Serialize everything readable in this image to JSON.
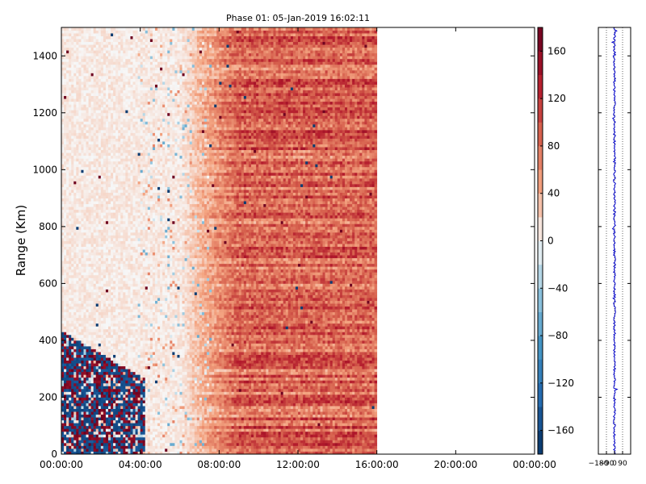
{
  "chart_data": [
    {
      "type": "heatmap",
      "title": "Phase 01: 05-Jan-2019 16:02:11",
      "xlabel": "",
      "ylabel": "Range (Km)",
      "x_ticks": [
        "00:00:00",
        "04:00:00",
        "08:00:00",
        "12:00:00",
        "16:00:00",
        "20:00:00",
        "00:00:00"
      ],
      "x_range_hours": [
        0,
        24
      ],
      "data_end_hour": 16,
      "y_ticks": [
        0,
        200,
        400,
        600,
        800,
        1000,
        1200,
        1400
      ],
      "ylim": [
        0,
        1500
      ],
      "colormap": "RdBu_r",
      "colorbar": {
        "ticks": [
          -160,
          -120,
          -80,
          -40,
          0,
          40,
          80,
          120,
          160
        ],
        "tick_labels": [
          "−160",
          "−120",
          "−80",
          "−40",
          "0",
          "40",
          "80",
          "120",
          "160"
        ],
        "range": [
          -180,
          180
        ]
      },
      "regions": [
        {
          "name": "saturated",
          "x_hours": [
            0,
            4.2
          ],
          "range_km": [
            0,
            430
          ],
          "value_range": [
            -180,
            180
          ]
        },
        {
          "name": "near-zero",
          "x_hours": [
            0,
            7.5
          ],
          "range_km": [
            430,
            1500
          ],
          "value_range": [
            -40,
            40
          ]
        },
        {
          "name": "positive",
          "x_hours": [
            7.5,
            16
          ],
          "range_km": [
            0,
            1500
          ],
          "value_range": [
            50,
            130
          ]
        }
      ]
    },
    {
      "type": "line",
      "x_ticks": [
        -180,
        -90,
        0,
        90
      ],
      "x_tick_labels": [
        "−180",
        "−90",
        "0",
        "90"
      ],
      "xlim": [
        -180,
        180
      ],
      "ylim": [
        0,
        1500
      ],
      "grid": "vertical dotted",
      "series_color": "#0000cc",
      "mean_value": 0
    }
  ]
}
